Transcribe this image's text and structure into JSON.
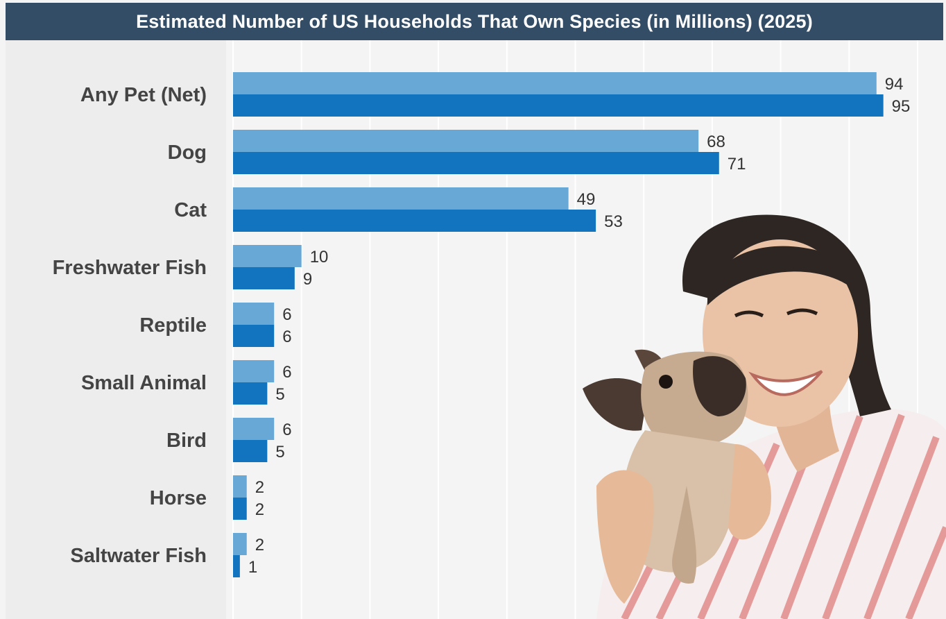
{
  "chart_data": {
    "type": "bar",
    "orientation": "horizontal",
    "title": "Estimated Number of US Households That Own Species (in Millions) (2025)",
    "categories": [
      "Any Pet (Net)",
      "Dog",
      "Cat",
      "Freshwater Fish",
      "Reptile",
      "Small Animal",
      "Bird",
      "Horse",
      "Saltwater Fish"
    ],
    "series": [
      {
        "color": "#68a8d6",
        "values": [
          94,
          68,
          49,
          10,
          6,
          6,
          6,
          2,
          2
        ]
      },
      {
        "color": "#1273be",
        "values": [
          95,
          71,
          53,
          9,
          6,
          5,
          5,
          2,
          1
        ]
      }
    ],
    "xlim": [
      0,
      104
    ],
    "grid": true,
    "legend": "none"
  },
  "colors": {
    "title_bar": "#344d66",
    "label_panel": "#ededee",
    "plot_background": "#f4f4f4"
  },
  "decorations": {
    "photo": "woman-holding-puppy-photo"
  }
}
